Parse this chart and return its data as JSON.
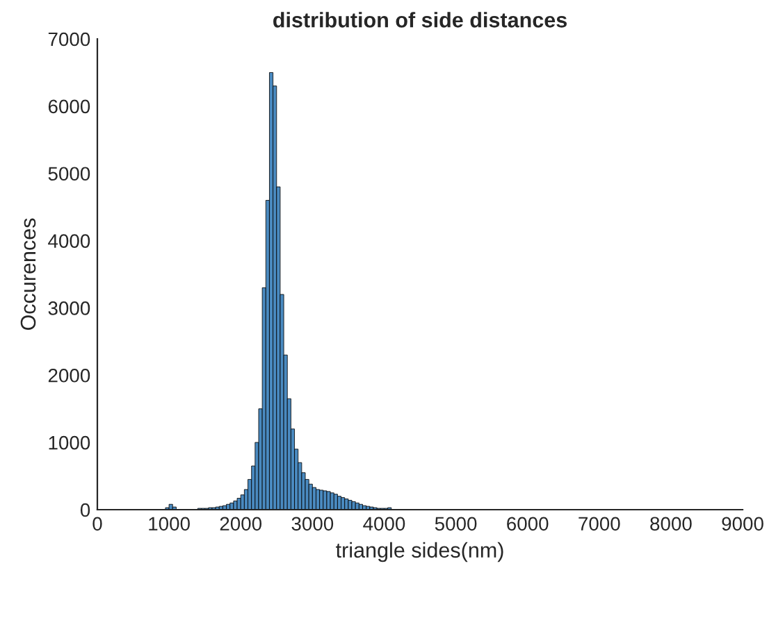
{
  "chart_data": {
    "type": "histogram",
    "title": "distribution of side distances",
    "xlabel": "triangle sides(nm)",
    "ylabel": "Occurences",
    "bins": [
      950,
      1000,
      1050,
      1100,
      1150,
      1200,
      1250,
      1300,
      1350,
      1400,
      1450,
      1500,
      1550,
      1600,
      1650,
      1700,
      1750,
      1800,
      1850,
      1900,
      1950,
      2000,
      2050,
      2100,
      2150,
      2200,
      2250,
      2300,
      2350,
      2400,
      2450,
      2500,
      2550,
      2600,
      2650,
      2700,
      2750,
      2800,
      2850,
      2900,
      2950,
      3000,
      3050,
      3100,
      3150,
      3200,
      3250,
      3300,
      3350,
      3400,
      3450,
      3500,
      3550,
      3600,
      3650,
      3700,
      3750,
      3800,
      3850,
      3900,
      3950,
      4000,
      4050,
      4100
    ],
    "values": [
      30,
      80,
      40,
      null,
      null,
      null,
      null,
      null,
      null,
      20,
      20,
      20,
      30,
      30,
      40,
      50,
      60,
      80,
      100,
      130,
      170,
      220,
      300,
      450,
      650,
      1000,
      1500,
      3300,
      4600,
      6500,
      6300,
      4800,
      3200,
      2300,
      1650,
      1200,
      900,
      700,
      550,
      450,
      380,
      330,
      300,
      290,
      280,
      270,
      250,
      230,
      200,
      180,
      160,
      140,
      120,
      100,
      80,
      60,
      50,
      40,
      30,
      20,
      20,
      20,
      30
    ],
    "color": "#4a8ac0",
    "xlim": [
      0,
      9000
    ],
    "xticks": [
      0,
      1000,
      2000,
      3000,
      4000,
      5000,
      6000,
      7000,
      8000,
      9000
    ],
    "ylim": [
      0,
      7000
    ],
    "yticks": [
      0,
      1000,
      2000,
      3000,
      4000,
      5000,
      6000,
      7000
    ],
    "grid": false
  }
}
